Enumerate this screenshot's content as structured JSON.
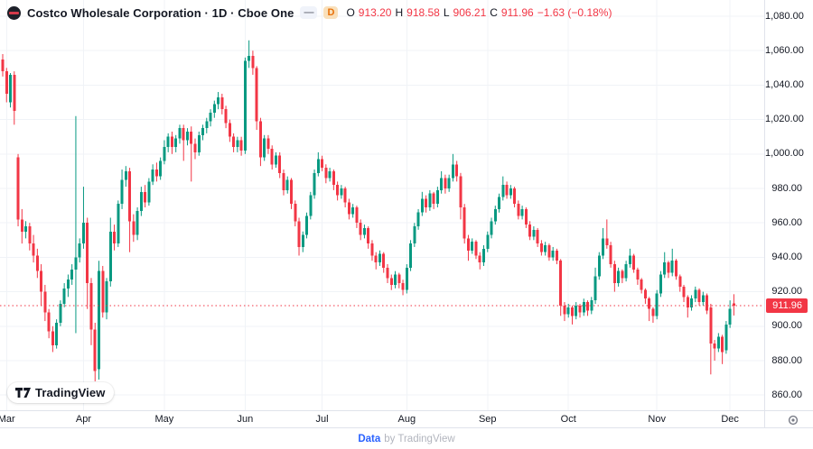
{
  "header": {
    "symbol_title": "Costco Wholesale Corporation · 1D · Cboe One",
    "visibility_dash": "—",
    "timeframe_badge": "D",
    "ohlc": {
      "o_label": "O",
      "o": "913.20",
      "h_label": "H",
      "h": "918.58",
      "l_label": "L",
      "l": "906.21",
      "c_label": "C",
      "c": "911.96",
      "change": "−1.63 (−0.18%)"
    }
  },
  "colors": {
    "up": "#089981",
    "down": "#f23645",
    "grid": "#f0f3f7",
    "axis_border": "#e0e3eb",
    "axis_text": "#131722",
    "price_line": "#f23645",
    "link_blue": "#2962ff",
    "muted_gray": "#b2b5be"
  },
  "price_axis": {
    "current_price_label": "911.96",
    "ticks": [
      {
        "price": 1080,
        "label": "1,080.00"
      },
      {
        "price": 1060,
        "label": "1,060.00"
      },
      {
        "price": 1040,
        "label": "1,040.00"
      },
      {
        "price": 1020,
        "label": "1,020.00"
      },
      {
        "price": 1000,
        "label": "1,000.00"
      },
      {
        "price": 980,
        "label": "980.00"
      },
      {
        "price": 960,
        "label": "960.00"
      },
      {
        "price": 940,
        "label": "940.00"
      },
      {
        "price": 920,
        "label": "920.00"
      },
      {
        "price": 900,
        "label": "900.00"
      },
      {
        "price": 880,
        "label": "880.00"
      },
      {
        "price": 860,
        "label": "860.00"
      }
    ]
  },
  "time_axis": {
    "ticks": [
      {
        "label": "Mar",
        "index": 1
      },
      {
        "label": "Apr",
        "index": 21
      },
      {
        "label": "May",
        "index": 42
      },
      {
        "label": "Jun",
        "index": 63
      },
      {
        "label": "Jul",
        "index": 83
      },
      {
        "label": "Aug",
        "index": 105
      },
      {
        "label": "Sep",
        "index": 126
      },
      {
        "label": "Oct",
        "index": 147
      },
      {
        "label": "Nov",
        "index": 170
      },
      {
        "label": "Dec",
        "index": 189
      }
    ]
  },
  "attribution": {
    "link": "Data",
    "rest": "by TradingView"
  },
  "logo": {
    "wordmark": "TradingView"
  },
  "chart_data": {
    "type": "candlestick",
    "title": "Costco Wholesale Corporation",
    "timeframe": "1D",
    "exchange": "Cboe One",
    "ylim": [
      855,
      1085
    ],
    "grid": true,
    "current_price": 911.96,
    "last": {
      "open": 913.2,
      "high": 918.58,
      "low": 906.21,
      "close": 911.96,
      "change": -1.63,
      "change_pct": -0.18
    },
    "months": [
      "Mar",
      "Apr",
      "May",
      "Jun",
      "Jul",
      "Aug",
      "Sep",
      "Oct",
      "Nov",
      "Dec"
    ],
    "candles_format": [
      "open",
      "high",
      "low",
      "close"
    ],
    "candles": [
      [
        1055,
        1058,
        1045,
        1048
      ],
      [
        1048,
        1050,
        1030,
        1035
      ],
      [
        1030,
        1047,
        1027,
        1046
      ],
      [
        1046,
        1048,
        1017,
        1025
      ],
      [
        998,
        1000,
        958,
        962
      ],
      [
        962,
        968,
        948,
        955
      ],
      [
        955,
        961,
        951,
        958
      ],
      [
        958,
        960,
        944,
        948
      ],
      [
        948,
        953,
        937,
        941
      ],
      [
        941,
        945,
        928,
        932
      ],
      [
        932,
        936,
        912,
        920
      ],
      [
        920,
        924,
        903,
        908
      ],
      [
        908,
        910,
        893,
        897
      ],
      [
        897,
        900,
        885,
        889
      ],
      [
        889,
        904,
        887,
        902
      ],
      [
        902,
        915,
        900,
        913
      ],
      [
        913,
        925,
        911,
        922
      ],
      [
        922,
        930,
        917,
        927
      ],
      [
        927,
        936,
        924,
        933
      ],
      [
        933,
        1022,
        896,
        940
      ],
      [
        940,
        951,
        937,
        948
      ],
      [
        948,
        981,
        945,
        960
      ],
      [
        960,
        963,
        910,
        925
      ],
      [
        925,
        928,
        889,
        898
      ],
      [
        898,
        902,
        868,
        874
      ],
      [
        875,
        938,
        869,
        932
      ],
      [
        932,
        935,
        905,
        908
      ],
      [
        908,
        928,
        904,
        926
      ],
      [
        926,
        963,
        923,
        955
      ],
      [
        955,
        959,
        944,
        948
      ],
      [
        948,
        973,
        946,
        971
      ],
      [
        971,
        991,
        968,
        985
      ],
      [
        985,
        993,
        981,
        990
      ],
      [
        990,
        992,
        943,
        961
      ],
      [
        961,
        965,
        949,
        953
      ],
      [
        953,
        969,
        950,
        967
      ],
      [
        967,
        981,
        964,
        978
      ],
      [
        978,
        982,
        969,
        972
      ],
      [
        972,
        986,
        970,
        984
      ],
      [
        984,
        994,
        982,
        991
      ],
      [
        991,
        995,
        984,
        987
      ],
      [
        987,
        998,
        985,
        996
      ],
      [
        996,
        1008,
        994,
        1004
      ],
      [
        1004,
        1012,
        1001,
        1010
      ],
      [
        1010,
        1013,
        1000,
        1004
      ],
      [
        1004,
        1011,
        1001,
        1009
      ],
      [
        1009,
        1017,
        1006,
        1015
      ],
      [
        1015,
        1017,
        996,
        1008
      ],
      [
        1008,
        1015,
        1005,
        1013
      ],
      [
        1013,
        1016,
        984,
        1006
      ],
      [
        1006,
        1009,
        997,
        1001
      ],
      [
        1001,
        1013,
        999,
        1011
      ],
      [
        1011,
        1017,
        1008,
        1015
      ],
      [
        1015,
        1021,
        1012,
        1019
      ],
      [
        1019,
        1026,
        1016,
        1024
      ],
      [
        1024,
        1031,
        1021,
        1029
      ],
      [
        1029,
        1036,
        1026,
        1033
      ],
      [
        1033,
        1035,
        1023,
        1026
      ],
      [
        1026,
        1028,
        1015,
        1018
      ],
      [
        1018,
        1020,
        1007,
        1010
      ],
      [
        1010,
        1012,
        1001,
        1004
      ],
      [
        1004,
        1010,
        1001,
        1008
      ],
      [
        1008,
        1010,
        999,
        1002
      ],
      [
        1002,
        1056,
        1000,
        1054
      ],
      [
        1054,
        1066,
        1050,
        1057
      ],
      [
        1057,
        1060,
        1046,
        1050
      ],
      [
        1050,
        1051,
        1014,
        1019
      ],
      [
        1019,
        1021,
        993,
        998
      ],
      [
        998,
        1011,
        996,
        1009
      ],
      [
        1009,
        1011,
        1000,
        1003
      ],
      [
        1003,
        1005,
        991,
        994
      ],
      [
        994,
        1001,
        992,
        999
      ],
      [
        999,
        1001,
        986,
        989
      ],
      [
        989,
        991,
        976,
        979
      ],
      [
        979,
        987,
        977,
        985
      ],
      [
        985,
        986,
        968,
        971
      ],
      [
        971,
        973,
        958,
        961
      ],
      [
        961,
        963,
        941,
        946
      ],
      [
        946,
        955,
        943,
        953
      ],
      [
        953,
        966,
        951,
        964
      ],
      [
        964,
        978,
        962,
        976
      ],
      [
        976,
        991,
        974,
        989
      ],
      [
        989,
        1001,
        987,
        997
      ],
      [
        997,
        999,
        990,
        992
      ],
      [
        992,
        994,
        983,
        986
      ],
      [
        986,
        992,
        984,
        990
      ],
      [
        990,
        991,
        979,
        982
      ],
      [
        982,
        984,
        973,
        976
      ],
      [
        976,
        982,
        974,
        980
      ],
      [
        980,
        981,
        969,
        972
      ],
      [
        972,
        974,
        962,
        965
      ],
      [
        965,
        971,
        963,
        969
      ],
      [
        969,
        970,
        957,
        960
      ],
      [
        960,
        962,
        950,
        953
      ],
      [
        953,
        959,
        951,
        957
      ],
      [
        957,
        958,
        945,
        948
      ],
      [
        948,
        950,
        938,
        941
      ],
      [
        941,
        943,
        933,
        937
      ],
      [
        937,
        944,
        935,
        942
      ],
      [
        942,
        943,
        931,
        934
      ],
      [
        934,
        936,
        925,
        928
      ],
      [
        928,
        930,
        921,
        924
      ],
      [
        924,
        932,
        922,
        930
      ],
      [
        930,
        931,
        922,
        925
      ],
      [
        925,
        927,
        918,
        921
      ],
      [
        921,
        936,
        919,
        934
      ],
      [
        934,
        950,
        932,
        948
      ],
      [
        948,
        960,
        946,
        958
      ],
      [
        958,
        968,
        956,
        966
      ],
      [
        966,
        978,
        964,
        974
      ],
      [
        974,
        976,
        966,
        969
      ],
      [
        969,
        979,
        967,
        977
      ],
      [
        977,
        978,
        968,
        971
      ],
      [
        971,
        981,
        969,
        979
      ],
      [
        979,
        990,
        977,
        986
      ],
      [
        986,
        988,
        977,
        980
      ],
      [
        980,
        988,
        978,
        986
      ],
      [
        986,
        1000,
        984,
        994
      ],
      [
        994,
        996,
        984,
        987
      ],
      [
        987,
        989,
        962,
        969
      ],
      [
        969,
        971,
        948,
        951
      ],
      [
        951,
        953,
        938,
        944
      ],
      [
        944,
        951,
        942,
        949
      ],
      [
        949,
        950,
        939,
        941
      ],
      [
        941,
        943,
        933,
        937
      ],
      [
        937,
        947,
        935,
        945
      ],
      [
        945,
        955,
        943,
        953
      ],
      [
        953,
        963,
        951,
        961
      ],
      [
        961,
        970,
        959,
        968
      ],
      [
        968,
        977,
        966,
        975
      ],
      [
        975,
        987,
        973,
        982
      ],
      [
        982,
        984,
        974,
        976
      ],
      [
        976,
        982,
        974,
        980
      ],
      [
        980,
        981,
        969,
        971
      ],
      [
        971,
        973,
        962,
        964
      ],
      [
        964,
        970,
        962,
        968
      ],
      [
        968,
        969,
        957,
        959
      ],
      [
        959,
        961,
        950,
        952
      ],
      [
        952,
        958,
        950,
        956
      ],
      [
        956,
        957,
        946,
        948
      ],
      [
        948,
        950,
        941,
        943
      ],
      [
        943,
        949,
        941,
        947
      ],
      [
        947,
        948,
        938,
        940
      ],
      [
        940,
        946,
        938,
        944
      ],
      [
        944,
        945,
        936,
        938
      ],
      [
        938,
        939,
        906,
        912
      ],
      [
        912,
        914,
        903,
        907
      ],
      [
        907,
        913,
        905,
        911
      ],
      [
        911,
        912,
        901,
        906
      ],
      [
        906,
        914,
        904,
        912
      ],
      [
        912,
        913,
        905,
        908
      ],
      [
        908,
        916,
        906,
        914
      ],
      [
        914,
        915,
        906,
        909
      ],
      [
        909,
        917,
        907,
        915
      ],
      [
        915,
        934,
        913,
        929
      ],
      [
        929,
        943,
        927,
        941
      ],
      [
        941,
        957,
        939,
        951
      ],
      [
        951,
        962,
        945,
        947
      ],
      [
        947,
        949,
        934,
        936
      ],
      [
        936,
        938,
        920,
        925
      ],
      [
        925,
        934,
        923,
        932
      ],
      [
        932,
        933,
        925,
        928
      ],
      [
        928,
        938,
        926,
        936
      ],
      [
        936,
        945,
        934,
        941
      ],
      [
        941,
        942,
        931,
        933
      ],
      [
        933,
        934,
        924,
        927
      ],
      [
        927,
        928,
        919,
        921
      ],
      [
        921,
        922,
        913,
        916
      ],
      [
        916,
        917,
        903,
        910
      ],
      [
        910,
        911,
        902,
        906
      ],
      [
        906,
        921,
        904,
        919
      ],
      [
        919,
        932,
        917,
        930
      ],
      [
        930,
        943,
        928,
        937
      ],
      [
        937,
        938,
        928,
        931
      ],
      [
        931,
        945,
        929,
        938
      ],
      [
        938,
        939,
        927,
        929
      ],
      [
        929,
        930,
        920,
        923
      ],
      [
        923,
        924,
        914,
        917
      ],
      [
        917,
        918,
        905,
        911
      ],
      [
        911,
        918,
        909,
        916
      ],
      [
        916,
        923,
        914,
        921
      ],
      [
        921,
        922,
        912,
        914
      ],
      [
        914,
        920,
        912,
        918
      ],
      [
        918,
        919,
        907,
        909
      ],
      [
        911,
        913,
        872,
        890
      ],
      [
        890,
        892,
        880,
        887
      ],
      [
        887,
        896,
        885,
        894
      ],
      [
        894,
        895,
        878,
        885
      ],
      [
        886,
        903,
        884,
        901
      ],
      [
        901,
        915,
        899,
        910
      ],
      [
        913.2,
        918.58,
        906.21,
        911.96
      ]
    ]
  }
}
